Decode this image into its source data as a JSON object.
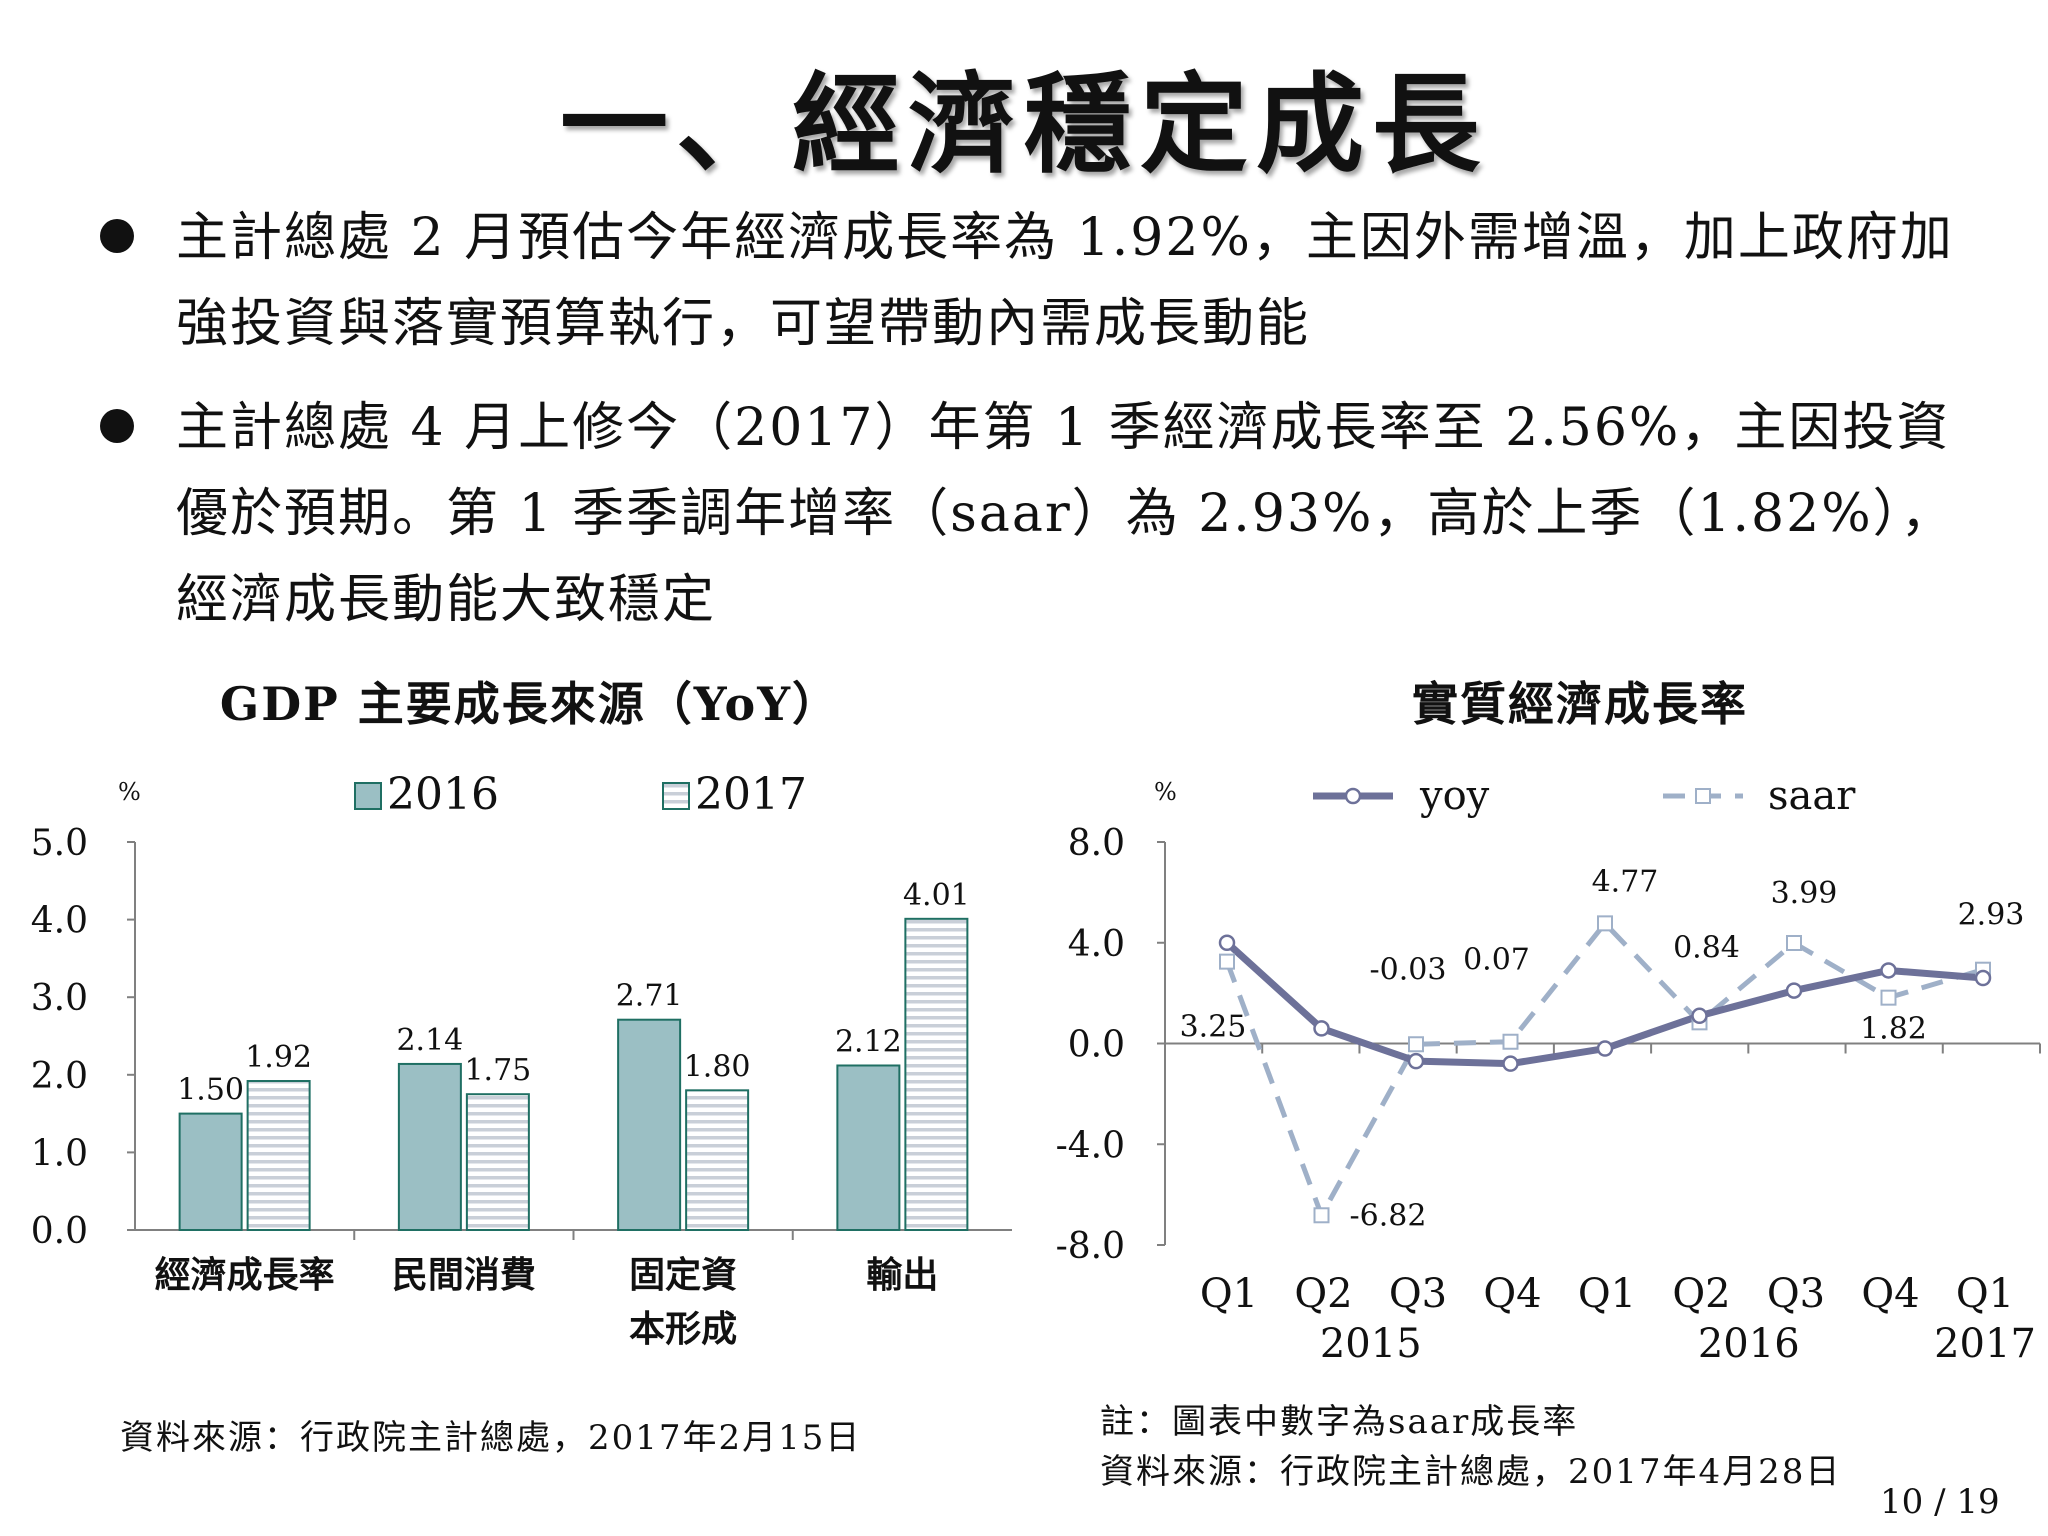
{
  "slide": {
    "title": "一、經濟穩定成長",
    "bullets": [
      "主計總處 2 月預估今年經濟成長率為 1.92%，主因外需增溫，加上政府加強投資與落實預算執行，可望帶動內需成長動能",
      "主計總處 4 月上修今（2017）年第 1 季經濟成長率至 2.56%，主因投資優於預期。第 1 季季調年增率（saar）為 2.93%，高於上季（1.82%），經濟成長動能大致穩定"
    ],
    "page_number": "10 / 19"
  },
  "colors": {
    "bar_2016": "#9bbfc4",
    "bar_2017_stripe": "#c9cfd8",
    "bar_edge": "#1f6f63",
    "yoy_line": "#6d7199",
    "saar_line": "#9fb0c8",
    "axis": "#808080"
  },
  "chart_data": [
    {
      "type": "bar",
      "title": "GDP 主要成長來源（YoY）",
      "unit_label": "%",
      "categories": [
        "經濟成長率",
        "民間消費",
        "固定資\n本形成",
        "輸出"
      ],
      "series": [
        {
          "name": "2016",
          "values": [
            1.5,
            2.14,
            2.71,
            2.12
          ],
          "labels": [
            "1.50",
            "2.14",
            "2.71",
            "2.12"
          ]
        },
        {
          "name": "2017",
          "values": [
            1.92,
            1.75,
            1.8,
            4.01
          ],
          "labels": [
            "1.92",
            "1.75",
            "1.80",
            "4.01"
          ]
        }
      ],
      "ylim": [
        0,
        5
      ],
      "yticks": [
        "0.0",
        "1.0",
        "2.0",
        "3.0",
        "4.0",
        "5.0"
      ],
      "legend": "top",
      "source": "資料來源：行政院主計總處，2017年2月15日"
    },
    {
      "type": "line",
      "title": "實質經濟成長率",
      "unit_label": "%",
      "x_quarters": [
        "Q1",
        "Q2",
        "Q3",
        "Q4",
        "Q1",
        "Q2",
        "Q3",
        "Q4",
        "Q1"
      ],
      "x_years": [
        {
          "label": "2015",
          "index": 1.5
        },
        {
          "label": "2016",
          "index": 5.5
        },
        {
          "label": "2017",
          "index": 8
        }
      ],
      "series": [
        {
          "name": "yoy",
          "style": "solid-circle",
          "values": [
            4.0,
            0.6,
            -0.7,
            -0.8,
            -0.2,
            1.1,
            2.1,
            2.9,
            2.6
          ]
        },
        {
          "name": "saar",
          "style": "dashed-square",
          "values": [
            3.25,
            -6.82,
            -0.03,
            0.07,
            4.77,
            0.84,
            3.99,
            1.82,
            2.93
          ],
          "labels": [
            "3.25",
            "-6.82",
            "-0.03",
            "0.07",
            "4.77",
            "0.84",
            "3.99",
            "1.82",
            "2.93"
          ]
        }
      ],
      "ylim": [
        -8,
        8
      ],
      "yticks": [
        "-8.0",
        "-4.0",
        "0.0",
        "4.0",
        "8.0"
      ],
      "legend": "top",
      "note": "註：圖表中數字為saar成長率",
      "source": "資料來源：行政院主計總處，2017年4月28日"
    }
  ]
}
